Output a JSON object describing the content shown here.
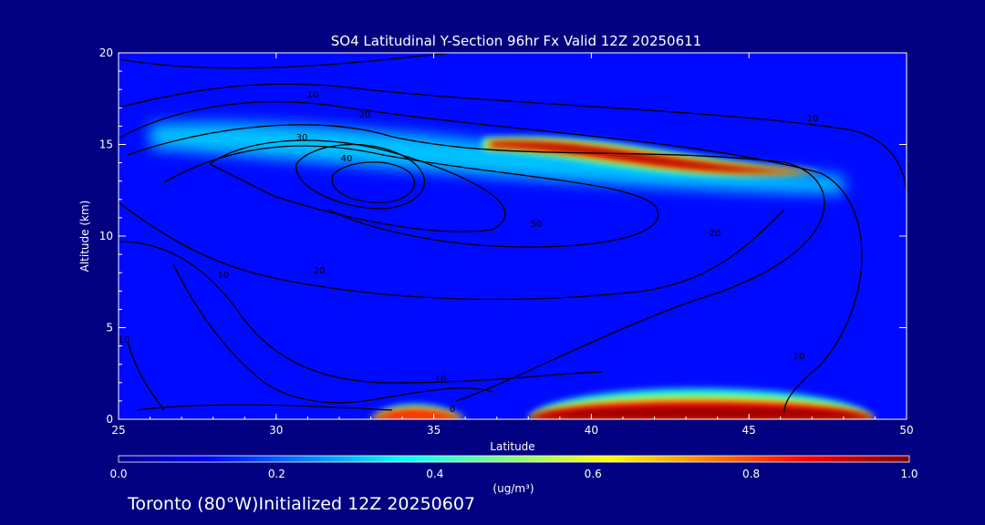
{
  "chart_data": {
    "type": "heatmap",
    "title": "SO4 Latitudinal Y-Section 96hr  Fx Valid 12Z 20250611",
    "xlabel": "Latitude",
    "ylabel": "Altitude (km)",
    "xlim": [
      25,
      50
    ],
    "ylim": [
      0,
      20
    ],
    "x_ticks": [
      "25",
      "30",
      "35",
      "40",
      "45",
      "50"
    ],
    "y_ticks": [
      "0",
      "5",
      "10",
      "15",
      "20"
    ],
    "colorbar": {
      "label": "(ug/m³)",
      "min": 0.0,
      "max": 1.0,
      "ticks": [
        "0.0",
        "0.2",
        "0.4",
        "0.6",
        "0.8",
        "1.0"
      ],
      "colormap": "jet"
    },
    "background_field": 0.12,
    "concentration_features": [
      {
        "name": "upper plume",
        "lat_start": 37,
        "lat_end": 47,
        "alt_start_km": 15.0,
        "alt_end_km": 13.5,
        "peak_value": 0.98
      },
      {
        "name": "upper broad band",
        "lat_start": 26,
        "lat_end": 48,
        "alt_start_km": 15.5,
        "alt_end_km": 13.0,
        "peak_value": 0.45
      },
      {
        "name": "surface layer north",
        "lat_start": 38,
        "lat_end": 49,
        "alt_km": 0.6,
        "peak_value": 0.95
      },
      {
        "name": "surface layer south",
        "lat_start": 33,
        "lat_end": 36,
        "alt_km": 0.3,
        "peak_value": 0.8
      }
    ],
    "contour_labels": [
      "10",
      "20",
      "30",
      "40",
      "50",
      "20",
      "10",
      "10",
      "20",
      "10",
      "10",
      "10",
      "0"
    ]
  },
  "footer": {
    "location": "Toronto (80°W)Initialized 12Z 20250607"
  }
}
